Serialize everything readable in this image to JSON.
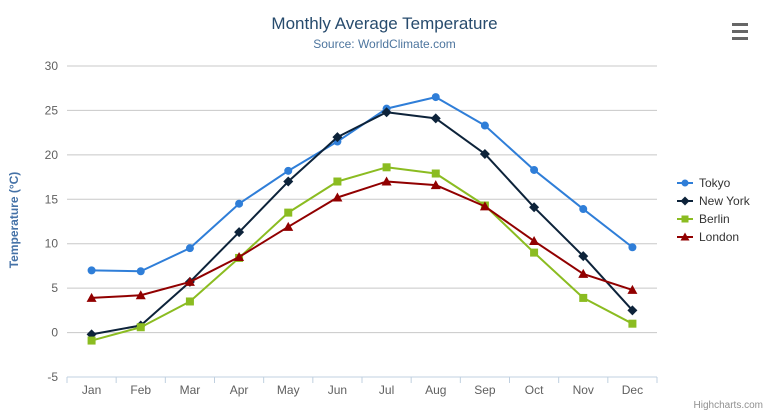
{
  "chart": {
    "title": "Monthly Average Temperature",
    "subtitle": "Source: WorldClimate.com",
    "credits": "Highcharts.com",
    "export_menu_icon": "hamburger-menu-icon",
    "background_color": "#ffffff",
    "title_color": "#274b6d",
    "subtitle_color": "#4d759e",
    "axis_label_color": "#606060",
    "axis_title_color": "#4572a7",
    "gridline_color": "#c8c8c8",
    "axis_line_color": "#c0d0e0",
    "legend_text_color": "#333333",
    "credits_color": "#909090"
  },
  "chart_data": {
    "type": "line",
    "title": "Monthly Average Temperature",
    "subtitle": "Source: WorldClimate.com",
    "xlabel": "",
    "ylabel": "Temperature (°C)",
    "ylim": [
      -5,
      30
    ],
    "yticks": [
      -5,
      0,
      5,
      10,
      15,
      20,
      25,
      30
    ],
    "grid": true,
    "legend_position": "right",
    "categories": [
      "Jan",
      "Feb",
      "Mar",
      "Apr",
      "May",
      "Jun",
      "Jul",
      "Aug",
      "Sep",
      "Oct",
      "Nov",
      "Dec"
    ],
    "series": [
      {
        "name": "Tokyo",
        "color": "#2f7ed8",
        "marker": "circle",
        "values": [
          7.0,
          6.9,
          9.5,
          14.5,
          18.2,
          21.5,
          25.2,
          26.5,
          23.3,
          18.3,
          13.9,
          9.6
        ]
      },
      {
        "name": "New York",
        "color": "#0d233a",
        "marker": "diamond",
        "values": [
          -0.2,
          0.8,
          5.7,
          11.3,
          17.0,
          22.0,
          24.8,
          24.1,
          20.1,
          14.1,
          8.6,
          2.5
        ]
      },
      {
        "name": "Berlin",
        "color": "#8bbc21",
        "marker": "square",
        "values": [
          -0.9,
          0.6,
          3.5,
          8.4,
          13.5,
          17.0,
          18.6,
          17.9,
          14.3,
          9.0,
          3.9,
          1.0
        ]
      },
      {
        "name": "London",
        "color": "#910000",
        "marker": "triangle",
        "values": [
          3.9,
          4.2,
          5.7,
          8.5,
          11.9,
          15.2,
          17.0,
          16.6,
          14.2,
          10.3,
          6.6,
          4.8
        ]
      }
    ]
  }
}
